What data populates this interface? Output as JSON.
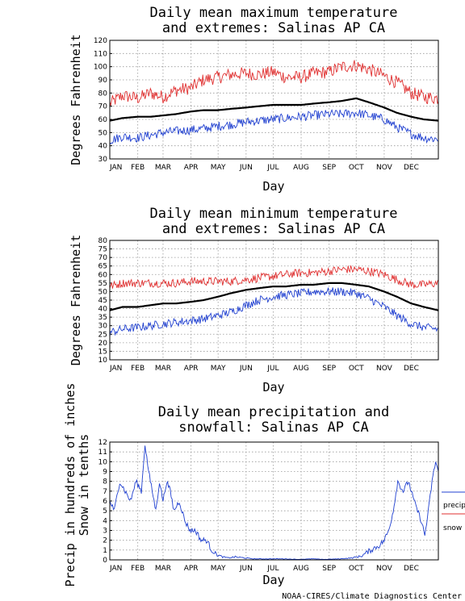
{
  "credit": "NOAA-CIRES/Climate Diagnostics Center",
  "colors": {
    "max": "#e03030",
    "min": "#2040d0",
    "mean": "#000000",
    "precip": "#2040d0",
    "snow": "#e03030"
  },
  "chart_data": [
    {
      "type": "line",
      "title_lines": [
        "Daily mean maximum temperature",
        "and extremes: Salinas AP CA"
      ],
      "ylabel": "Degrees Fahrenheit",
      "xlabel": "Day",
      "ylim": [
        30,
        120
      ],
      "yticks": [
        30,
        40,
        50,
        60,
        70,
        80,
        90,
        100,
        110,
        120
      ],
      "categories": [
        "JAN",
        "FEB",
        "MAR",
        "APR",
        "MAY",
        "JUN",
        "JUL",
        "AUG",
        "SEP",
        "OCT",
        "NOV",
        "DEC"
      ],
      "grid": true,
      "series": [
        {
          "role": "max",
          "x": [
            1,
            15,
            32,
            46,
            60,
            74,
            91,
            105,
            121,
            135,
            152,
            166,
            182,
            196,
            213,
            227,
            244,
            258,
            274,
            288,
            305,
            319,
            335,
            349,
            365
          ],
          "values": [
            72,
            78,
            76,
            80,
            77,
            82,
            84,
            90,
            92,
            94,
            95,
            94,
            96,
            92,
            92,
            95,
            96,
            100,
            101,
            98,
            93,
            88,
            80,
            77,
            76
          ]
        },
        {
          "role": "mean",
          "x": [
            1,
            15,
            32,
            46,
            60,
            74,
            91,
            105,
            121,
            135,
            152,
            166,
            182,
            196,
            213,
            227,
            244,
            258,
            274,
            288,
            305,
            319,
            335,
            349,
            365
          ],
          "values": [
            59,
            61,
            62,
            62,
            63,
            64,
            66,
            67,
            67,
            68,
            69,
            70,
            71,
            71,
            71,
            72,
            73,
            74,
            76,
            73,
            69,
            65,
            62,
            60,
            59
          ]
        },
        {
          "role": "min",
          "x": [
            1,
            15,
            32,
            46,
            60,
            74,
            91,
            105,
            121,
            135,
            152,
            166,
            182,
            196,
            213,
            227,
            244,
            258,
            274,
            288,
            305,
            319,
            335,
            349,
            365
          ],
          "values": [
            44,
            47,
            46,
            48,
            50,
            51,
            52,
            53,
            55,
            56,
            58,
            59,
            60,
            61,
            62,
            63,
            64,
            64,
            65,
            63,
            60,
            54,
            49,
            46,
            45
          ]
        }
      ]
    },
    {
      "type": "line",
      "title_lines": [
        "Daily mean minimum temperature",
        "and extremes: Salinas AP CA"
      ],
      "ylabel": "Degrees Fahrenheit",
      "xlabel": "Day",
      "ylim": [
        10,
        80
      ],
      "yticks": [
        10,
        15,
        20,
        25,
        30,
        35,
        40,
        45,
        50,
        55,
        60,
        65,
        70,
        75,
        80
      ],
      "categories": [
        "JAN",
        "FEB",
        "MAR",
        "APR",
        "MAY",
        "JUN",
        "JUL",
        "AUG",
        "SEP",
        "OCT",
        "NOV",
        "DEC"
      ],
      "grid": true,
      "series": [
        {
          "role": "max",
          "x": [
            1,
            15,
            32,
            46,
            60,
            74,
            91,
            105,
            121,
            135,
            152,
            166,
            182,
            196,
            213,
            227,
            244,
            258,
            274,
            288,
            305,
            319,
            335,
            349,
            365
          ],
          "values": [
            53,
            55,
            55,
            55,
            55,
            55,
            56,
            56,
            56,
            56,
            57,
            58,
            59,
            60,
            61,
            61,
            62,
            63,
            63,
            62,
            60,
            57,
            54,
            54,
            55
          ]
        },
        {
          "role": "mean",
          "x": [
            1,
            15,
            32,
            46,
            60,
            74,
            91,
            105,
            121,
            135,
            152,
            166,
            182,
            196,
            213,
            227,
            244,
            258,
            274,
            288,
            305,
            319,
            335,
            349,
            365
          ],
          "values": [
            39,
            41,
            41,
            42,
            43,
            43,
            44,
            45,
            47,
            49,
            51,
            52,
            53,
            53,
            54,
            54,
            55,
            55,
            54,
            53,
            50,
            47,
            43,
            41,
            39
          ]
        },
        {
          "role": "min",
          "x": [
            1,
            15,
            32,
            46,
            60,
            74,
            91,
            105,
            121,
            135,
            152,
            166,
            182,
            196,
            213,
            227,
            244,
            258,
            274,
            288,
            305,
            319,
            335,
            349,
            365
          ],
          "values": [
            26,
            28,
            29,
            30,
            31,
            32,
            33,
            34,
            36,
            38,
            42,
            45,
            47,
            48,
            49,
            50,
            50,
            50,
            49,
            46,
            41,
            36,
            31,
            29,
            28
          ]
        }
      ]
    },
    {
      "type": "line",
      "title_lines": [
        "Daily mean precipitation and",
        "snowfall: Salinas AP CA"
      ],
      "ylabel_lines": [
        "Precip in hundreds of inches",
        "Snow in tenths"
      ],
      "xlabel": "Day",
      "ylim": [
        0,
        12
      ],
      "yticks": [
        0,
        1,
        2,
        3,
        4,
        5,
        6,
        7,
        8,
        9,
        10,
        11,
        12
      ],
      "categories": [
        "JAN",
        "FEB",
        "MAR",
        "APR",
        "MAY",
        "JUN",
        "JUL",
        "AUG",
        "SEP",
        "OCT",
        "NOV",
        "DEC"
      ],
      "grid": true,
      "legend": [
        "precip",
        "snow"
      ],
      "legend_position": "right",
      "series": [
        {
          "role": "precip",
          "name": "precip",
          "x": [
            1,
            6,
            12,
            18,
            24,
            30,
            36,
            40,
            44,
            48,
            52,
            56,
            60,
            64,
            68,
            72,
            78,
            84,
            90,
            96,
            102,
            108,
            114,
            120,
            126,
            132,
            140,
            150,
            160,
            170,
            180,
            195,
            210,
            225,
            240,
            255,
            270,
            280,
            290,
            300,
            305,
            310,
            315,
            320,
            326,
            332,
            338,
            342,
            346,
            350,
            354,
            358,
            362,
            365
          ],
          "values": [
            6,
            5,
            8,
            7,
            6,
            8,
            7,
            11.8,
            9,
            7,
            5,
            8,
            6,
            8,
            7,
            5,
            6,
            4,
            3,
            3,
            2,
            2,
            1,
            0.5,
            0.3,
            0.2,
            0.3,
            0.2,
            0.1,
            0.1,
            0.1,
            0.1,
            0.05,
            0.1,
            0.05,
            0.1,
            0.2,
            0.4,
            1,
            1.5,
            2,
            3,
            5,
            8,
            7,
            8,
            6,
            5,
            4,
            2.5,
            5,
            8,
            10,
            9
          ]
        },
        {
          "role": "snow",
          "name": "snow",
          "x": [
            1,
            365
          ],
          "values": [
            0,
            0
          ]
        }
      ]
    }
  ]
}
